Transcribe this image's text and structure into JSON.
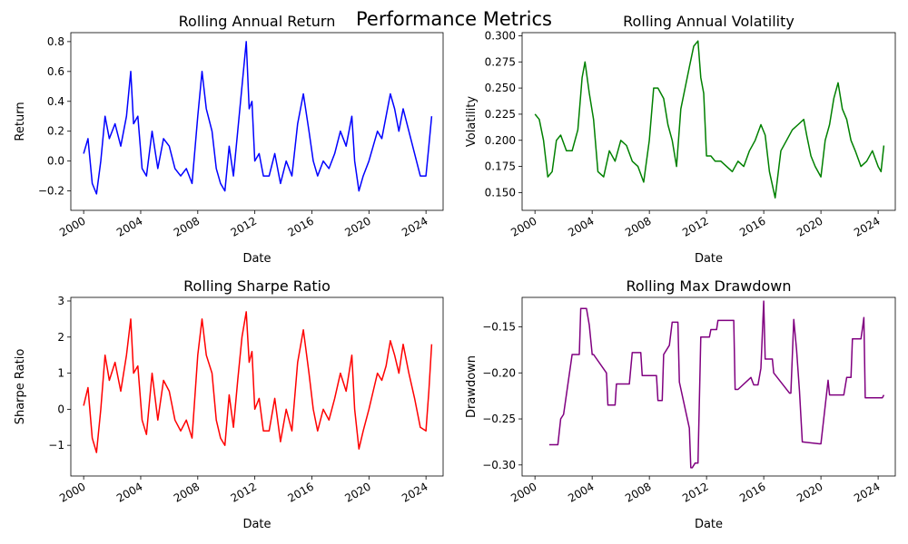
{
  "figure": {
    "title": "Performance Metrics"
  },
  "chart_data": [
    {
      "type": "line",
      "title": "Rolling Annual Return",
      "xlabel": "Date",
      "ylabel": "Return",
      "color": "#0000ff",
      "xlim": [
        1999.1,
        2025.2
      ],
      "ylim": [
        -0.33,
        0.86
      ],
      "xticks": [
        2000,
        2004,
        2008,
        2012,
        2016,
        2020,
        2024
      ],
      "yticks": [
        -0.2,
        0.0,
        0.2,
        0.4,
        0.6,
        0.8
      ],
      "ytick_labels": [
        "−0.2",
        "0.0",
        "0.2",
        "0.4",
        "0.6",
        "0.8"
      ],
      "x": [
        2000.0,
        2000.3,
        2000.6,
        2000.9,
        2001.2,
        2001.5,
        2001.8,
        2002.2,
        2002.6,
        2003.0,
        2003.3,
        2003.5,
        2003.8,
        2004.1,
        2004.4,
        2004.8,
        2005.2,
        2005.6,
        2006.0,
        2006.4,
        2006.8,
        2007.2,
        2007.6,
        2008.0,
        2008.3,
        2008.6,
        2009.0,
        2009.3,
        2009.6,
        2009.9,
        2010.2,
        2010.5,
        2010.8,
        2011.1,
        2011.4,
        2011.6,
        2011.8,
        2012.0,
        2012.3,
        2012.6,
        2013.0,
        2013.4,
        2013.8,
        2014.2,
        2014.6,
        2015.0,
        2015.4,
        2015.8,
        2016.1,
        2016.4,
        2016.8,
        2017.2,
        2017.6,
        2018.0,
        2018.4,
        2018.8,
        2019.0,
        2019.3,
        2019.6,
        2020.0,
        2020.3,
        2020.6,
        2020.9,
        2021.2,
        2021.5,
        2021.8,
        2022.1,
        2022.4,
        2022.8,
        2023.2,
        2023.6,
        2024.0,
        2024.2,
        2024.4
      ],
      "y": [
        0.05,
        0.15,
        -0.15,
        -0.22,
        0.0,
        0.3,
        0.15,
        0.25,
        0.1,
        0.3,
        0.6,
        0.25,
        0.3,
        -0.05,
        -0.1,
        0.2,
        -0.05,
        0.15,
        0.1,
        -0.05,
        -0.1,
        -0.05,
        -0.15,
        0.3,
        0.6,
        0.35,
        0.2,
        -0.05,
        -0.15,
        -0.2,
        0.1,
        -0.1,
        0.2,
        0.5,
        0.8,
        0.35,
        0.4,
        0.0,
        0.05,
        -0.1,
        -0.1,
        0.05,
        -0.15,
        0.0,
        -0.1,
        0.25,
        0.45,
        0.2,
        0.0,
        -0.1,
        0.0,
        -0.05,
        0.05,
        0.2,
        0.1,
        0.3,
        0.0,
        -0.2,
        -0.1,
        0.0,
        0.1,
        0.2,
        0.15,
        0.3,
        0.45,
        0.35,
        0.2,
        0.35,
        0.2,
        0.05,
        -0.1,
        -0.1,
        0.1,
        0.3
      ]
    },
    {
      "type": "line",
      "title": "Rolling Annual Volatility",
      "xlabel": "Date",
      "ylabel": "Volatility",
      "color": "#008000",
      "xlim": [
        1999.1,
        2025.2
      ],
      "ylim": [
        0.133,
        0.303
      ],
      "xticks": [
        2000,
        2004,
        2008,
        2012,
        2016,
        2020,
        2024
      ],
      "yticks": [
        0.15,
        0.175,
        0.2,
        0.225,
        0.25,
        0.275,
        0.3
      ],
      "ytick_labels": [
        "0.150",
        "0.175",
        "0.200",
        "0.225",
        "0.250",
        "0.275",
        "0.300"
      ],
      "x": [
        2000.0,
        2000.3,
        2000.6,
        2000.9,
        2001.2,
        2001.5,
        2001.8,
        2002.2,
        2002.6,
        2003.0,
        2003.3,
        2003.5,
        2003.8,
        2004.1,
        2004.4,
        2004.8,
        2005.2,
        2005.6,
        2006.0,
        2006.4,
        2006.8,
        2007.2,
        2007.6,
        2008.0,
        2008.3,
        2008.6,
        2009.0,
        2009.3,
        2009.6,
        2009.9,
        2010.2,
        2010.5,
        2010.8,
        2011.1,
        2011.4,
        2011.6,
        2011.8,
        2012.0,
        2012.3,
        2012.6,
        2013.0,
        2013.4,
        2013.8,
        2014.2,
        2014.6,
        2015.0,
        2015.4,
        2015.8,
        2016.1,
        2016.4,
        2016.8,
        2017.2,
        2017.6,
        2018.0,
        2018.4,
        2018.8,
        2019.0,
        2019.3,
        2019.6,
        2020.0,
        2020.3,
        2020.6,
        2020.9,
        2021.2,
        2021.5,
        2021.8,
        2022.1,
        2022.4,
        2022.8,
        2023.2,
        2023.6,
        2024.0,
        2024.2,
        2024.4
      ],
      "y": [
        0.225,
        0.22,
        0.2,
        0.165,
        0.17,
        0.2,
        0.205,
        0.19,
        0.19,
        0.21,
        0.26,
        0.275,
        0.245,
        0.22,
        0.17,
        0.165,
        0.19,
        0.18,
        0.2,
        0.195,
        0.18,
        0.175,
        0.16,
        0.2,
        0.25,
        0.25,
        0.24,
        0.215,
        0.2,
        0.175,
        0.23,
        0.25,
        0.27,
        0.29,
        0.295,
        0.26,
        0.245,
        0.185,
        0.185,
        0.18,
        0.18,
        0.175,
        0.17,
        0.18,
        0.175,
        0.19,
        0.2,
        0.215,
        0.205,
        0.17,
        0.145,
        0.19,
        0.2,
        0.21,
        0.215,
        0.22,
        0.205,
        0.185,
        0.175,
        0.165,
        0.2,
        0.215,
        0.24,
        0.255,
        0.23,
        0.22,
        0.2,
        0.19,
        0.175,
        0.18,
        0.19,
        0.175,
        0.17,
        0.195
      ]
    },
    {
      "type": "line",
      "title": "Rolling Sharpe Ratio",
      "xlabel": "Date",
      "ylabel": "Sharpe Ratio",
      "color": "#ff0000",
      "xlim": [
        1999.1,
        2025.2
      ],
      "ylim": [
        -1.85,
        3.1
      ],
      "xticks": [
        2000,
        2004,
        2008,
        2012,
        2016,
        2020,
        2024
      ],
      "yticks": [
        -1,
        0,
        1,
        2,
        3
      ],
      "ytick_labels": [
        "−1",
        "0",
        "1",
        "2",
        "3"
      ],
      "x": [
        2000.0,
        2000.3,
        2000.6,
        2000.9,
        2001.2,
        2001.5,
        2001.8,
        2002.2,
        2002.6,
        2003.0,
        2003.3,
        2003.5,
        2003.8,
        2004.1,
        2004.4,
        2004.8,
        2005.2,
        2005.6,
        2006.0,
        2006.4,
        2006.8,
        2007.2,
        2007.6,
        2008.0,
        2008.3,
        2008.6,
        2009.0,
        2009.3,
        2009.6,
        2009.9,
        2010.2,
        2010.5,
        2010.8,
        2011.1,
        2011.4,
        2011.6,
        2011.8,
        2012.0,
        2012.3,
        2012.6,
        2013.0,
        2013.4,
        2013.8,
        2014.2,
        2014.6,
        2015.0,
        2015.4,
        2015.8,
        2016.1,
        2016.4,
        2016.8,
        2017.2,
        2017.6,
        2018.0,
        2018.4,
        2018.8,
        2019.0,
        2019.3,
        2019.6,
        2020.0,
        2020.3,
        2020.6,
        2020.9,
        2021.2,
        2021.5,
        2021.8,
        2022.1,
        2022.4,
        2022.8,
        2023.2,
        2023.6,
        2024.0,
        2024.2,
        2024.4
      ],
      "y": [
        0.1,
        0.6,
        -0.8,
        -1.2,
        0.0,
        1.5,
        0.8,
        1.3,
        0.5,
        1.5,
        2.5,
        1.0,
        1.2,
        -0.3,
        -0.7,
        1.0,
        -0.3,
        0.8,
        0.5,
        -0.3,
        -0.6,
        -0.3,
        -0.8,
        1.5,
        2.5,
        1.5,
        1.0,
        -0.3,
        -0.8,
        -1.0,
        0.4,
        -0.5,
        0.8,
        2.0,
        2.7,
        1.3,
        1.6,
        0.0,
        0.3,
        -0.6,
        -0.6,
        0.3,
        -0.9,
        0.0,
        -0.6,
        1.3,
        2.2,
        1.0,
        0.0,
        -0.6,
        0.0,
        -0.3,
        0.3,
        1.0,
        0.5,
        1.5,
        0.0,
        -1.1,
        -0.6,
        0.0,
        0.5,
        1.0,
        0.8,
        1.2,
        1.9,
        1.5,
        1.0,
        1.8,
        1.0,
        0.3,
        -0.5,
        -0.6,
        0.5,
        1.8
      ]
    },
    {
      "type": "line",
      "title": "Rolling Max Drawdown",
      "xlabel": "Date",
      "ylabel": "Drawdown",
      "color": "#800080",
      "xlim": [
        1999.1,
        2025.2
      ],
      "ylim": [
        -0.312,
        -0.118
      ],
      "xticks": [
        2000,
        2004,
        2008,
        2012,
        2016,
        2020,
        2024
      ],
      "yticks": [
        -0.3,
        -0.25,
        -0.2,
        -0.15
      ],
      "ytick_labels": [
        "−0.30",
        "−0.25",
        "−0.20",
        "−0.15"
      ],
      "x": [
        2001.0,
        2001.6,
        2001.8,
        2002.0,
        2002.6,
        2002.7,
        2003.1,
        2003.2,
        2003.6,
        2003.8,
        2004.0,
        2004.1,
        2005.0,
        2005.1,
        2005.6,
        2005.7,
        2006.6,
        2006.8,
        2007.4,
        2007.5,
        2008.5,
        2008.6,
        2008.9,
        2009.0,
        2009.4,
        2009.6,
        2010.0,
        2010.1,
        2010.8,
        2010.9,
        2011.0,
        2011.2,
        2011.4,
        2011.6,
        2012.2,
        2012.3,
        2012.7,
        2012.8,
        2013.9,
        2014.0,
        2014.2,
        2015.1,
        2015.3,
        2015.6,
        2015.8,
        2016.0,
        2016.1,
        2016.6,
        2016.7,
        2017.8,
        2017.9,
        2018.1,
        2018.3,
        2018.5,
        2018.7,
        2019.9,
        2020.0,
        2020.5,
        2020.6,
        2021.6,
        2021.8,
        2022.1,
        2022.2,
        2022.8,
        2022.9,
        2023.0,
        2023.1,
        2024.3,
        2024.4
      ],
      "y": [
        -0.278,
        -0.278,
        -0.25,
        -0.245,
        -0.18,
        -0.18,
        -0.18,
        -0.13,
        -0.13,
        -0.148,
        -0.18,
        -0.18,
        -0.2,
        -0.235,
        -0.235,
        -0.212,
        -0.212,
        -0.178,
        -0.178,
        -0.203,
        -0.203,
        -0.23,
        -0.23,
        -0.18,
        -0.17,
        -0.145,
        -0.145,
        -0.21,
        -0.26,
        -0.303,
        -0.303,
        -0.298,
        -0.298,
        -0.161,
        -0.161,
        -0.153,
        -0.153,
        -0.143,
        -0.143,
        -0.218,
        -0.218,
        -0.205,
        -0.213,
        -0.213,
        -0.195,
        -0.122,
        -0.185,
        -0.185,
        -0.2,
        -0.222,
        -0.222,
        -0.142,
        -0.175,
        -0.22,
        -0.275,
        -0.277,
        -0.277,
        -0.208,
        -0.224,
        -0.224,
        -0.205,
        -0.205,
        -0.163,
        -0.163,
        -0.152,
        -0.14,
        -0.227,
        -0.227,
        -0.224
      ]
    }
  ]
}
